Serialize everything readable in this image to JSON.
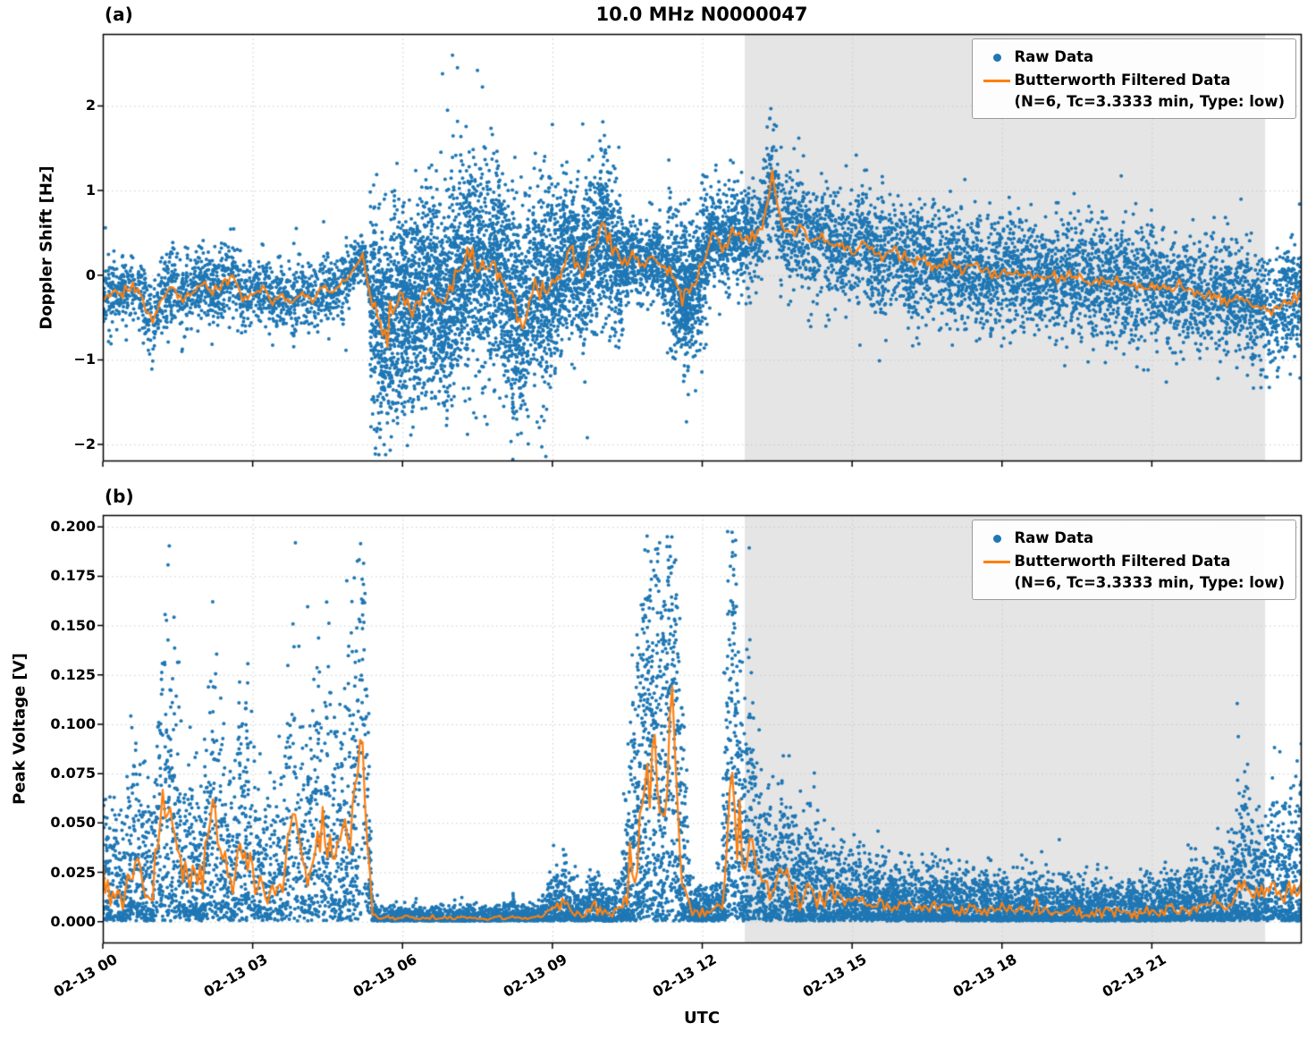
{
  "figure": {
    "title": "10.0 MHz N0000047",
    "xlabel": "UTC",
    "panels": [
      {
        "label": "(a)",
        "ylabel": "Doppler Shift [Hz]"
      },
      {
        "label": "(b)",
        "ylabel": "Peak Voltage [V]"
      }
    ]
  },
  "legend": {
    "raw": "Raw Data",
    "filtered": "Butterworth Filtered Data",
    "filtered_params": "(N=6, Tc=3.3333 min, Type: low)"
  },
  "colors": {
    "raw": "#1f77b4",
    "filtered": "#ff7f0e",
    "shade": "#e5e5e5",
    "grid": "#c9c9c9",
    "axes": "#000000"
  },
  "chart_data": [
    {
      "type": "scatter",
      "panel": "a",
      "title": "10.0 MHz N0000047",
      "ylabel": "Doppler Shift [Hz]",
      "xlabel": "UTC",
      "xlim": [
        0,
        24
      ],
      "ylim": [
        -2.2,
        2.85
      ],
      "yticks": [
        -2,
        -1,
        0,
        1,
        2
      ],
      "ytick_labels": [
        "−2",
        "−1",
        "0",
        "1",
        "2"
      ],
      "xticks": [
        0,
        3,
        6,
        9,
        12,
        15,
        18,
        21
      ],
      "xtick_labels": [
        "02-13 00",
        "02-13 03",
        "02-13 06",
        "02-13 09",
        "02-13 12",
        "02-13 15",
        "02-13 18",
        "02-13 21"
      ],
      "grid": true,
      "legend_position": "upper right",
      "shaded_region": [
        12.85,
        23.27
      ],
      "series": [
        {
          "name": "Raw Data",
          "type": "scatter",
          "color": "#1f77b4",
          "segments": [
            [
              0.0,
              5.0,
              0.22,
              1500
            ],
            [
              5.0,
              5.35,
              0.12,
              120
            ],
            [
              5.35,
              9.0,
              0.62,
              3200
            ],
            [
              9.0,
              10.4,
              0.5,
              1100
            ],
            [
              10.4,
              11.3,
              0.22,
              450
            ],
            [
              11.3,
              12.1,
              0.42,
              700
            ],
            [
              12.1,
              13.1,
              0.28,
              500
            ],
            [
              13.1,
              24.0,
              0.33,
              4500
            ]
          ],
          "outliers": [
            [
              5.9,
              -1.75
            ],
            [
              6.8,
              2.38
            ],
            [
              6.9,
              1.95
            ],
            [
              7.0,
              2.6
            ],
            [
              7.1,
              2.45
            ],
            [
              7.3,
              -1.88
            ],
            [
              7.5,
              2.42
            ],
            [
              9.0,
              1.78
            ],
            [
              9.7,
              -1.92
            ],
            [
              13.3,
              1.75
            ],
            [
              13.35,
              1.85
            ]
          ]
        },
        {
          "name": "Butterworth Filtered Data (N=6, Tc=3.3333 min, Type: low)",
          "type": "line",
          "color": "#ff7f0e",
          "t_start": 0,
          "t_step": 0.2,
          "v": [
            -0.3,
            -0.18,
            -0.22,
            -0.12,
            -0.28,
            -0.55,
            -0.25,
            -0.12,
            -0.3,
            -0.18,
            -0.1,
            -0.22,
            -0.08,
            0.02,
            -0.28,
            -0.22,
            -0.12,
            -0.3,
            -0.25,
            -0.32,
            -0.2,
            -0.28,
            -0.15,
            -0.22,
            -0.1,
            0.05,
            0.22,
            -0.35,
            -0.75,
            -0.45,
            -0.35,
            -0.42,
            -0.25,
            -0.2,
            -0.35,
            -0.1,
            0.1,
            0.25,
            -0.02,
            0.15,
            -0.1,
            -0.32,
            -0.6,
            -0.22,
            -0.1,
            -0.15,
            0.1,
            0.32,
            0.02,
            0.25,
            0.6,
            0.3,
            0.12,
            0.22,
            0.15,
            0.22,
            0.1,
            0.0,
            -0.28,
            -0.18,
            0.12,
            0.5,
            0.32,
            0.55,
            0.4,
            0.45,
            0.52,
            1.15,
            0.55,
            0.45,
            0.58,
            0.35,
            0.5,
            0.3,
            0.38,
            0.25,
            0.42,
            0.3,
            0.2,
            0.3,
            0.2,
            0.14,
            0.22,
            0.1,
            0.16,
            0.1,
            0.05,
            0.12,
            0.05,
            0.0,
            0.06,
            0.0,
            0.05,
            -0.02,
            -0.06,
            0.0,
            -0.05,
            0.02,
            -0.06,
            -0.1,
            -0.04,
            -0.1,
            -0.05,
            -0.12,
            -0.16,
            -0.1,
            -0.15,
            -0.2,
            -0.14,
            -0.2,
            -0.26,
            -0.2,
            -0.26,
            -0.32,
            -0.24,
            -0.35,
            -0.42,
            -0.46,
            -0.36,
            -0.3,
            -0.25
          ]
        }
      ]
    },
    {
      "type": "scatter",
      "panel": "b",
      "title": "",
      "ylabel": "Peak Voltage [V]",
      "xlabel": "UTC",
      "xlim": [
        0,
        24
      ],
      "ylim": [
        -0.011,
        0.206
      ],
      "yticks": [
        0.0,
        0.025,
        0.05,
        0.075,
        0.1,
        0.125,
        0.15,
        0.175,
        0.2
      ],
      "ytick_labels": [
        "0.000",
        "0.025",
        "0.050",
        "0.075",
        "0.100",
        "0.125",
        "0.150",
        "0.175",
        "0.200"
      ],
      "xticks": [
        0,
        3,
        6,
        9,
        12,
        15,
        18,
        21
      ],
      "xtick_labels": [
        "02-13 00",
        "02-13 03",
        "02-13 06",
        "02-13 09",
        "02-13 12",
        "02-13 15",
        "02-13 18",
        "02-13 21"
      ],
      "grid": true,
      "legend_position": "upper right",
      "shaded_region": [
        12.85,
        23.27
      ],
      "series": [
        {
          "name": "Raw Data",
          "type": "scatter",
          "color": "#1f77b4",
          "segments": [
            [
              0.0,
              5.3,
              0.012,
              2200
            ],
            [
              5.3,
              8.9,
              0.0015,
              1400
            ],
            [
              8.9,
              10.4,
              0.004,
              700
            ],
            [
              10.4,
              11.7,
              0.02,
              900
            ],
            [
              11.7,
              12.4,
              0.003,
              350
            ],
            [
              12.4,
              13.0,
              0.02,
              400
            ],
            [
              13.0,
              14.8,
              0.008,
              900
            ],
            [
              14.8,
              22.2,
              0.0045,
              3800
            ],
            [
              22.2,
              24.0,
              0.009,
              900
            ]
          ],
          "outliers": [
            [
              2.2,
              0.162
            ],
            [
              5.15,
              0.152
            ],
            [
              10.95,
              0.165
            ],
            [
              11.05,
              0.175
            ],
            [
              11.3,
              0.195
            ],
            [
              11.35,
              0.19
            ],
            [
              12.6,
              0.185
            ]
          ]
        },
        {
          "name": "Butterworth Filtered Data (N=6, Tc=3.3333 min, Type: low)",
          "type": "line",
          "color": "#ff7f0e",
          "t_start": 0,
          "t_step": 0.2,
          "v": [
            0.022,
            0.014,
            0.01,
            0.03,
            0.018,
            0.014,
            0.06,
            0.05,
            0.02,
            0.026,
            0.018,
            0.058,
            0.028,
            0.018,
            0.042,
            0.024,
            0.018,
            0.014,
            0.022,
            0.057,
            0.028,
            0.034,
            0.05,
            0.038,
            0.034,
            0.058,
            0.083,
            0.003,
            0.002,
            0.002,
            0.002,
            0.002,
            0.002,
            0.002,
            0.002,
            0.002,
            0.002,
            0.002,
            0.002,
            0.002,
            0.002,
            0.003,
            0.002,
            0.002,
            0.003,
            0.007,
            0.01,
            0.005,
            0.003,
            0.008,
            0.004,
            0.003,
            0.01,
            0.022,
            0.06,
            0.09,
            0.05,
            0.103,
            0.022,
            0.005,
            0.004,
            0.005,
            0.01,
            0.085,
            0.03,
            0.04,
            0.02,
            0.015,
            0.025,
            0.015,
            0.012,
            0.02,
            0.01,
            0.013,
            0.01,
            0.012,
            0.01,
            0.008,
            0.01,
            0.008,
            0.009,
            0.008,
            0.007,
            0.008,
            0.007,
            0.008,
            0.006,
            0.007,
            0.006,
            0.007,
            0.006,
            0.005,
            0.006,
            0.005,
            0.006,
            0.005,
            0.005,
            0.006,
            0.005,
            0.004,
            0.005,
            0.004,
            0.005,
            0.004,
            0.005,
            0.006,
            0.005,
            0.007,
            0.006,
            0.008,
            0.007,
            0.01,
            0.008,
            0.012,
            0.025,
            0.014,
            0.012,
            0.018,
            0.014,
            0.02,
            0.022
          ]
        }
      ]
    }
  ]
}
